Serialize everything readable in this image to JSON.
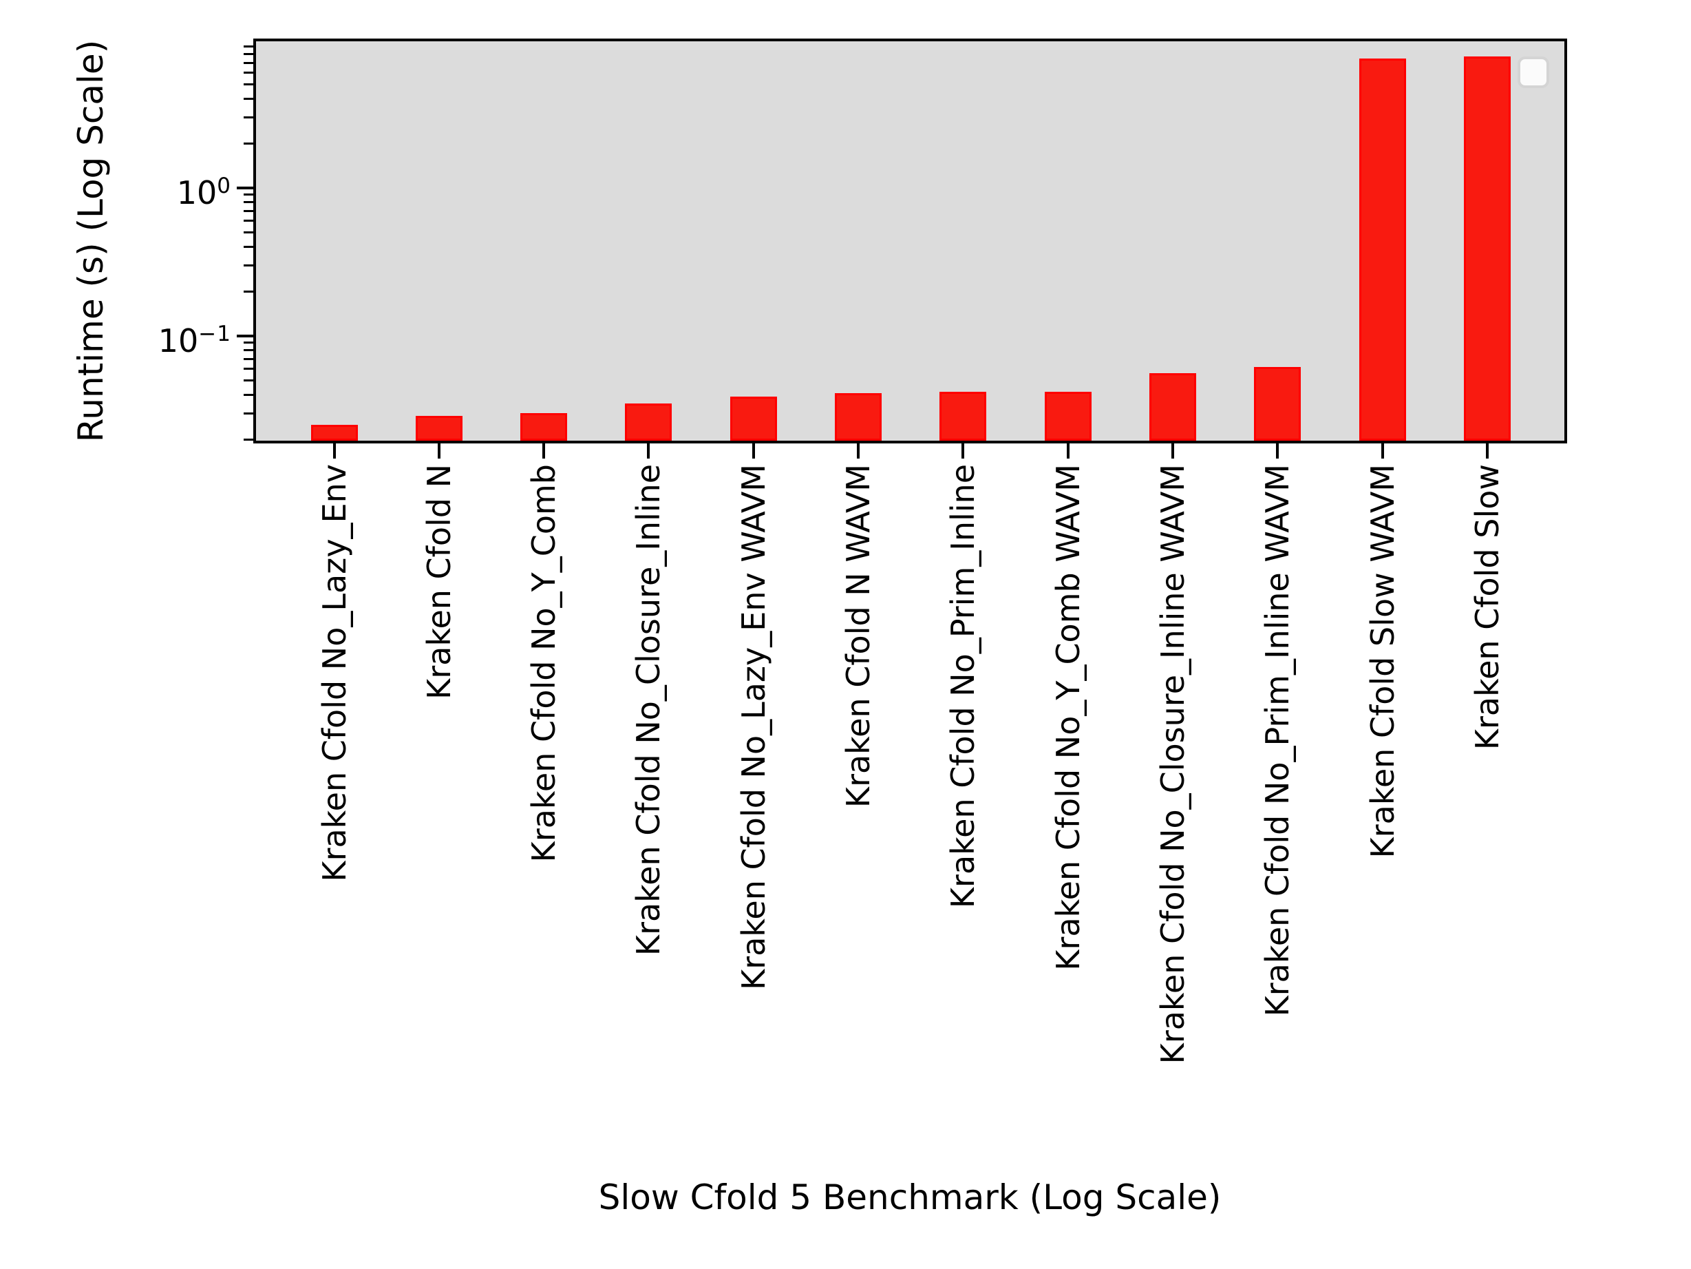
{
  "figure": {
    "background": "#ffffff"
  },
  "chart_data": {
    "type": "bar",
    "title": "",
    "xlabel": "Slow Cfold 5 Benchmark (Log Scale)",
    "ylabel": "Runtime (s) (Log Scale)",
    "yscale": "log",
    "ylim": [
      0.019,
      10.2
    ],
    "grid": false,
    "categories": [
      "Kraken Cfold No_Lazy_Env",
      "Kraken Cfold N",
      "Kraken Cfold No_Y_Comb",
      "Kraken Cfold No_Closure_Inline",
      "Kraken Cfold No_Lazy_Env WAVM",
      "Kraken Cfold N WAVM",
      "Kraken Cfold No_Prim_Inline",
      "Kraken Cfold No_Y_Comb WAVM",
      "Kraken Cfold No_Closure_Inline WAVM",
      "Kraken Cfold No_Prim_Inline WAVM",
      "Kraken Cfold Slow WAVM",
      "Kraken Cfold Slow"
    ],
    "values": [
      0.025,
      0.029,
      0.03,
      0.035,
      0.039,
      0.041,
      0.042,
      0.042,
      0.056,
      0.062,
      7.5,
      7.7
    ],
    "ytick_labels": [
      {
        "base": "10",
        "exp": "0",
        "value": 1.0
      },
      {
        "base": "10",
        "exp": "−1",
        "value": 0.1
      }
    ],
    "legend": {
      "visible": true,
      "entries": [],
      "position": "upper right"
    },
    "colors": {
      "bar_fill": "#f91a10",
      "bar_edge": "#ff0000",
      "plot_background": "#dcdcdc",
      "spine": "#000000"
    }
  }
}
